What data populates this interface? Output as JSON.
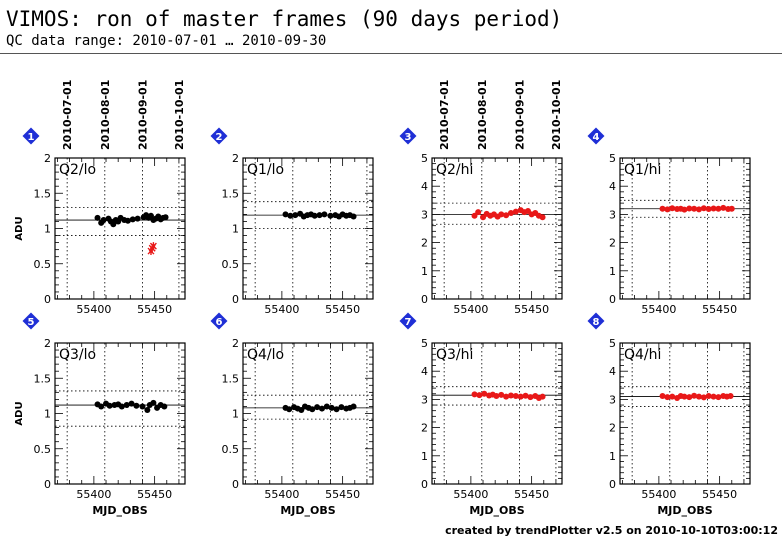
{
  "header": {
    "title": "VIMOS: ron of master frames (90 days period)",
    "subtitle": "QC data range: 2010-07-01 … 2010-09-30"
  },
  "footer": {
    "text": "created by trendPlotter v2.5 on 2010-10-10T03:00:12"
  },
  "colors": {
    "black_points": "#000000",
    "red_points": "#e81818",
    "badge": "#1f2fd6"
  },
  "date_axis_labels": [
    "2010-07-01",
    "2010-08-01",
    "2010-09-01",
    "2010-10-01"
  ],
  "chart_data": [
    {
      "type": "scatter",
      "panel_number": "1",
      "label": "Q2/lo",
      "color": "black",
      "ylabel": "ADU",
      "xlabel": "",
      "xlim": [
        55368,
        55475
      ],
      "ylim": [
        0,
        2
      ],
      "yticks": [
        0,
        0.5,
        1,
        1.5,
        2
      ],
      "xticks": [
        55400,
        55450
      ],
      "median": 1.12,
      "dotted_lines": [
        0.9,
        1.3
      ],
      "x": [
        55403,
        55406,
        55408,
        55412,
        55414,
        55416,
        55418,
        55420,
        55422,
        55425,
        55428,
        55432,
        55436,
        55441,
        55443,
        55445,
        55447,
        55449,
        55451,
        55453,
        55455,
        55457,
        55459
      ],
      "y": [
        1.15,
        1.08,
        1.12,
        1.14,
        1.1,
        1.06,
        1.12,
        1.1,
        1.15,
        1.12,
        1.11,
        1.13,
        1.14,
        1.16,
        1.19,
        1.15,
        1.18,
        1.12,
        1.14,
        1.17,
        1.13,
        1.15,
        1.16
      ],
      "outliers": {
        "marker": "cross",
        "x": [
          55447,
          55448,
          55449
        ],
        "y": [
          0.68,
          0.72,
          0.75
        ]
      }
    },
    {
      "type": "scatter",
      "panel_number": "2",
      "label": "Q1/lo",
      "color": "black",
      "ylabel": "",
      "xlabel": "",
      "xlim": [
        55368,
        55475
      ],
      "ylim": [
        0,
        2
      ],
      "yticks": [
        0,
        0.5,
        1,
        1.5,
        2
      ],
      "xticks": [
        55400,
        55450
      ],
      "median": 1.19,
      "dotted_lines": [
        1.0,
        1.38
      ],
      "x": [
        55403,
        55407,
        55411,
        55415,
        55418,
        55421,
        55424,
        55427,
        55431,
        55435,
        55440,
        55444,
        55447,
        55450,
        55453,
        55456,
        55459
      ],
      "y": [
        1.2,
        1.18,
        1.19,
        1.21,
        1.17,
        1.19,
        1.2,
        1.18,
        1.19,
        1.2,
        1.18,
        1.19,
        1.17,
        1.2,
        1.18,
        1.19,
        1.17
      ]
    },
    {
      "type": "scatter",
      "panel_number": "3",
      "label": "Q2/hi",
      "color": "red",
      "ylabel": "",
      "xlabel": "",
      "xlim": [
        55368,
        55475
      ],
      "ylim": [
        0,
        5
      ],
      "yticks": [
        0,
        1,
        2,
        3,
        4,
        5
      ],
      "xticks": [
        55400,
        55450
      ],
      "median": 3.0,
      "dotted_lines": [
        2.65,
        3.4
      ],
      "x": [
        55403,
        55406,
        55410,
        55413,
        55416,
        55419,
        55422,
        55425,
        55429,
        55433,
        55437,
        55441,
        55444,
        55447,
        55450,
        55453,
        55456,
        55459
      ],
      "y": [
        2.95,
        3.08,
        2.9,
        3.02,
        2.95,
        3.0,
        2.92,
        3.0,
        2.97,
        3.05,
        3.1,
        3.15,
        3.08,
        3.12,
        3.0,
        3.05,
        2.95,
        2.9
      ]
    },
    {
      "type": "scatter",
      "panel_number": "4",
      "label": "Q1/hi",
      "color": "red",
      "ylabel": "",
      "xlabel": "",
      "xlim": [
        55368,
        55475
      ],
      "ylim": [
        0,
        5
      ],
      "yticks": [
        0,
        1,
        2,
        3,
        4,
        5
      ],
      "xticks": [
        55400,
        55450
      ],
      "median": 3.2,
      "dotted_lines": [
        2.9,
        3.5
      ],
      "x": [
        55403,
        55407,
        55411,
        55415,
        55418,
        55421,
        55425,
        55429,
        55433,
        55437,
        55441,
        55445,
        55449,
        55453,
        55457,
        55460
      ],
      "y": [
        3.2,
        3.18,
        3.22,
        3.19,
        3.2,
        3.17,
        3.21,
        3.2,
        3.18,
        3.22,
        3.19,
        3.21,
        3.2,
        3.23,
        3.19,
        3.2
      ]
    },
    {
      "type": "scatter",
      "panel_number": "5",
      "label": "Q3/lo",
      "color": "black",
      "ylabel": "ADU",
      "xlabel": "MJD_OBS",
      "xlim": [
        55368,
        55475
      ],
      "ylim": [
        0,
        2
      ],
      "yticks": [
        0,
        0.5,
        1,
        1.5,
        2
      ],
      "xticks": [
        55400,
        55450
      ],
      "median": 1.12,
      "dotted_lines": [
        0.82,
        1.32
      ],
      "x": [
        55403,
        55406,
        55410,
        55413,
        55417,
        55420,
        55423,
        55427,
        55431,
        55435,
        55440,
        55444,
        55446,
        55449,
        55452,
        55455,
        55458
      ],
      "y": [
        1.13,
        1.1,
        1.14,
        1.11,
        1.12,
        1.13,
        1.1,
        1.12,
        1.14,
        1.11,
        1.1,
        1.05,
        1.12,
        1.15,
        1.08,
        1.12,
        1.1
      ]
    },
    {
      "type": "scatter",
      "panel_number": "6",
      "label": "Q4/lo",
      "color": "black",
      "ylabel": "",
      "xlabel": "MJD_OBS",
      "xlim": [
        55368,
        55475
      ],
      "ylim": [
        0,
        2
      ],
      "yticks": [
        0,
        0.5,
        1,
        1.5,
        2
      ],
      "xticks": [
        55400,
        55450
      ],
      "median": 1.08,
      "dotted_lines": [
        0.92,
        1.26
      ],
      "x": [
        55403,
        55406,
        55410,
        55413,
        55416,
        55419,
        55422,
        55425,
        55429,
        55433,
        55437,
        55441,
        55445,
        55449,
        55453,
        55456,
        55459
      ],
      "y": [
        1.08,
        1.06,
        1.09,
        1.07,
        1.05,
        1.1,
        1.08,
        1.06,
        1.09,
        1.07,
        1.1,
        1.08,
        1.06,
        1.09,
        1.07,
        1.08,
        1.1
      ]
    },
    {
      "type": "scatter",
      "panel_number": "7",
      "label": "Q3/hi",
      "color": "red",
      "ylabel": "",
      "xlabel": "MJD_OBS",
      "xlim": [
        55368,
        55475
      ],
      "ylim": [
        0,
        5
      ],
      "yticks": [
        0,
        1,
        2,
        3,
        4,
        5
      ],
      "xticks": [
        55400,
        55450
      ],
      "median": 3.15,
      "dotted_lines": [
        2.8,
        3.45
      ],
      "x": [
        55403,
        55407,
        55411,
        55415,
        55418,
        55421,
        55425,
        55429,
        55433,
        55437,
        55441,
        55445,
        55449,
        55453,
        55456,
        55459
      ],
      "y": [
        3.18,
        3.15,
        3.2,
        3.14,
        3.17,
        3.12,
        3.16,
        3.1,
        3.14,
        3.12,
        3.1,
        3.13,
        3.08,
        3.12,
        3.05,
        3.1
      ]
    },
    {
      "type": "scatter",
      "panel_number": "8",
      "label": "Q4/hi",
      "color": "red",
      "ylabel": "",
      "xlabel": "MJD_OBS",
      "xlim": [
        55368,
        55475
      ],
      "ylim": [
        0,
        5
      ],
      "yticks": [
        0,
        1,
        2,
        3,
        4,
        5
      ],
      "xticks": [
        55400,
        55450
      ],
      "median": 3.1,
      "dotted_lines": [
        2.75,
        3.45
      ],
      "x": [
        55403,
        55407,
        55411,
        55415,
        55418,
        55421,
        55425,
        55429,
        55433,
        55437,
        55441,
        55445,
        55449,
        55453,
        55456,
        55459
      ],
      "y": [
        3.12,
        3.08,
        3.1,
        3.05,
        3.12,
        3.1,
        3.08,
        3.13,
        3.1,
        3.07,
        3.12,
        3.1,
        3.08,
        3.12,
        3.1,
        3.12
      ]
    }
  ]
}
